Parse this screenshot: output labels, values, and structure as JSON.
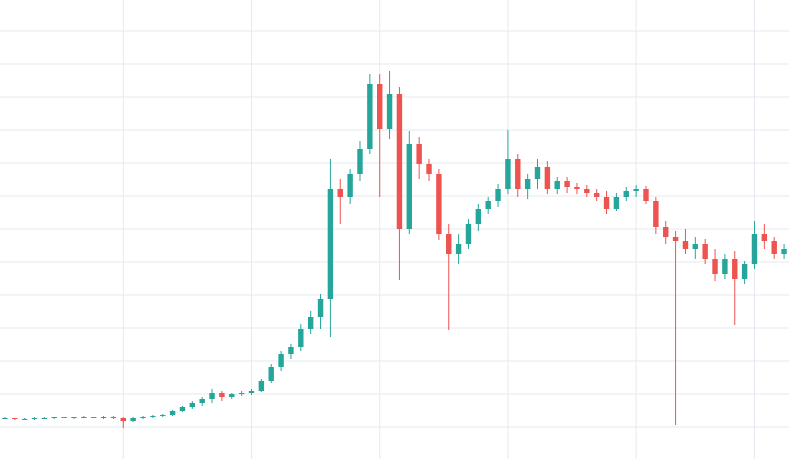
{
  "chart_data": {
    "type": "candlestick",
    "up_color": "#26a69a",
    "down_color": "#ef5350",
    "grid": true,
    "grid_color": "#e6eaf0",
    "xlim": [
      -0.5,
      79.5
    ],
    "xticks": [
      12,
      25,
      38,
      51,
      64,
      76
    ],
    "ylim": [
      0,
      459
    ],
    "yticks": [
      32,
      65,
      98,
      131,
      164,
      197,
      230,
      263,
      296,
      329,
      362,
      395,
      428
    ],
    "x": [
      0,
      1,
      2,
      3,
      4,
      5,
      6,
      7,
      8,
      9,
      10,
      11,
      12,
      13,
      14,
      15,
      16,
      17,
      18,
      19,
      20,
      21,
      22,
      23,
      24,
      25,
      26,
      27,
      28,
      29,
      30,
      31,
      32,
      33,
      34,
      35,
      36,
      37,
      38,
      39,
      40,
      41,
      42,
      43,
      44,
      45,
      46,
      47,
      48,
      49,
      50,
      51,
      52,
      53,
      54,
      55,
      56,
      57,
      58,
      59,
      60,
      61,
      62,
      63,
      64,
      65,
      66,
      67,
      68,
      69,
      70,
      71,
      72,
      73,
      74,
      75,
      76,
      77,
      78,
      79
    ],
    "open": [
      41,
      41,
      40,
      40,
      41,
      41,
      42,
      41,
      42,
      42,
      41,
      42,
      41,
      38,
      41,
      42,
      43,
      44,
      48,
      52,
      56,
      60,
      66,
      62,
      65,
      66,
      68,
      78,
      92,
      105,
      112,
      130,
      142,
      160,
      270,
      262,
      285,
      310,
      375,
      330,
      365,
      230,
      315,
      295,
      285,
      225,
      205,
      215,
      235,
      250,
      258,
      270,
      300,
      270,
      280,
      292,
      270,
      278,
      272,
      270,
      266,
      262,
      250,
      262,
      268,
      270,
      258,
      232,
      222,
      218,
      210,
      215,
      200,
      185,
      200,
      180,
      195,
      225,
      218,
      205
    ],
    "high": [
      42,
      41,
      41,
      42,
      42,
      42,
      42,
      42,
      43,
      42,
      43,
      43,
      42,
      42,
      43,
      44,
      45,
      49,
      53,
      58,
      62,
      70,
      68,
      66,
      68,
      70,
      80,
      95,
      108,
      115,
      135,
      148,
      165,
      300,
      280,
      290,
      318,
      385,
      385,
      388,
      372,
      328,
      322,
      300,
      290,
      235,
      225,
      240,
      255,
      262,
      275,
      329,
      305,
      285,
      300,
      298,
      282,
      282,
      276,
      274,
      270,
      268,
      266,
      272,
      274,
      273,
      262,
      238,
      228,
      230,
      222,
      220,
      210,
      205,
      208,
      198,
      238,
      235,
      222,
      215
    ],
    "low": [
      40,
      39,
      39,
      39,
      40,
      40,
      41,
      40,
      41,
      41,
      40,
      40,
      31,
      37,
      40,
      41,
      42,
      43,
      47,
      50,
      53,
      56,
      58,
      60,
      63,
      64,
      67,
      76,
      88,
      100,
      108,
      125,
      130,
      122,
      235,
      255,
      278,
      305,
      262,
      320,
      179,
      225,
      280,
      278,
      219,
      129,
      195,
      210,
      228,
      245,
      252,
      265,
      262,
      260,
      270,
      265,
      265,
      266,
      265,
      262,
      258,
      245,
      248,
      258,
      262,
      255,
      225,
      215,
      34,
      205,
      200,
      195,
      178,
      180,
      134,
      175,
      190,
      210,
      200,
      200
    ],
    "close": [
      41,
      40,
      40,
      41,
      41,
      42,
      41,
      42,
      42,
      41,
      42,
      41,
      38,
      41,
      42,
      43,
      44,
      48,
      52,
      56,
      60,
      66,
      62,
      65,
      66,
      68,
      78,
      92,
      105,
      112,
      130,
      142,
      160,
      270,
      262,
      285,
      310,
      375,
      330,
      365,
      230,
      315,
      295,
      285,
      225,
      205,
      215,
      235,
      250,
      258,
      270,
      300,
      270,
      280,
      292,
      270,
      278,
      272,
      270,
      266,
      262,
      250,
      262,
      268,
      270,
      258,
      232,
      222,
      218,
      210,
      215,
      200,
      185,
      200,
      180,
      195,
      225,
      218,
      205,
      210
    ]
  }
}
